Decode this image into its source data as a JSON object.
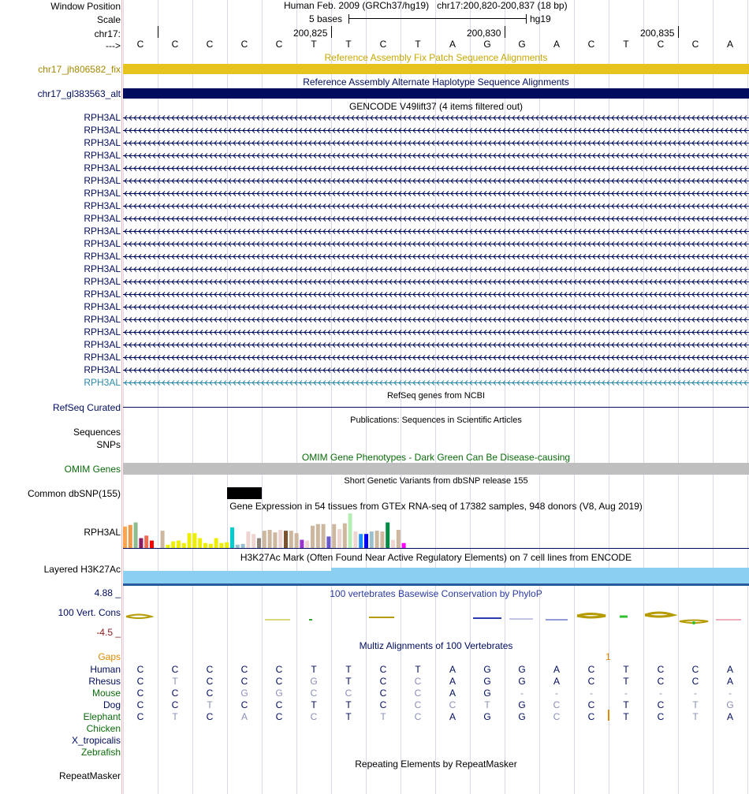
{
  "header": {
    "window_position_label": "Window Position",
    "scale_label": "Scale",
    "chrom_label": "chr17:",
    "strand_label": "--->",
    "assembly_text": "Human Feb. 2009 (GRCh37/hg19)",
    "position_text": "chr17:200,820-200,837 (18 bp)",
    "scale_text": "5 bases",
    "db_text": "hg19",
    "ticks": [
      "200,825",
      "200,830",
      "200,835"
    ],
    "bases": [
      "C",
      "C",
      "C",
      "C",
      "C",
      "T",
      "T",
      "C",
      "T",
      "A",
      "G",
      "G",
      "A",
      "C",
      "T",
      "C",
      "C",
      "A"
    ]
  },
  "tracks": {
    "fix_patch": {
      "title": "Reference Assembly Fix Patch Sequence Alignments",
      "label": "chr17_jh806582_fix",
      "color": "#e6c41d"
    },
    "alt_haplotype": {
      "title": "Reference Assembly Alternate Haplotype Sequence Alignments",
      "label": "chr17_gl383563_alt",
      "color": "#000c5e"
    },
    "gencode": {
      "title": "GENCODE V49lift37 (4 items filtered out)",
      "items": [
        "RPH3AL",
        "RPH3AL",
        "RPH3AL",
        "RPH3AL",
        "RPH3AL",
        "RPH3AL",
        "RPH3AL",
        "RPH3AL",
        "RPH3AL",
        "RPH3AL",
        "RPH3AL",
        "RPH3AL",
        "RPH3AL",
        "RPH3AL",
        "RPH3AL",
        "RPH3AL",
        "RPH3AL",
        "RPH3AL",
        "RPH3AL",
        "RPH3AL",
        "RPH3AL",
        "RPH3AL"
      ],
      "last_color": "#2d8aa8"
    },
    "refseq": {
      "title": "RefSeq genes from NCBI",
      "label": "RefSeq Curated"
    },
    "publications": {
      "title": "Publications: Sequences in Scientific Articles",
      "label_a": "Sequences",
      "label_b": "SNPs"
    },
    "omim": {
      "title": "OMIM Gene Phenotypes - Dark Green Can Be Disease-causing",
      "label": "OMIM Genes",
      "color": "#bfbfbf"
    },
    "dbsnp": {
      "title": "Short Genetic Variants from dbSNP release 155",
      "label": "Common dbSNP(155)"
    },
    "gtex": {
      "title": "Gene Expression in 54 tissues from GTEx RNA-seq of 17382 samples, 948 donors (V8, Aug 2019)",
      "label": "RPH3AL",
      "bars": [
        {
          "value": 26,
          "color": "#ffa54f"
        },
        {
          "value": 28,
          "color": "#ee9a49"
        },
        {
          "value": 31,
          "color": "#8fbc8f"
        },
        {
          "value": 12,
          "color": "#8b1c62"
        },
        {
          "value": 15,
          "color": "#ee6a50"
        },
        {
          "value": 9,
          "color": "#ff0000"
        },
        {
          "value": 2,
          "color": "#ffffff"
        },
        {
          "value": 21,
          "color": "#cdb79e"
        },
        {
          "value": 4,
          "color": "#eeee00"
        },
        {
          "value": 8,
          "color": "#eeee00"
        },
        {
          "value": 9,
          "color": "#eeee00"
        },
        {
          "value": 6,
          "color": "#eeee00"
        },
        {
          "value": 18,
          "color": "#eeee00"
        },
        {
          "value": 18,
          "color": "#eeee00"
        },
        {
          "value": 12,
          "color": "#eeee00"
        },
        {
          "value": 6,
          "color": "#eeee00"
        },
        {
          "value": 5,
          "color": "#eeee00"
        },
        {
          "value": 12,
          "color": "#eeee00"
        },
        {
          "value": 6,
          "color": "#eeee00"
        },
        {
          "value": 7,
          "color": "#eeee00"
        },
        {
          "value": 25,
          "color": "#00cdcd"
        },
        {
          "value": 4,
          "color": "#9ac0cd"
        },
        {
          "value": 5,
          "color": "#9ac0cd"
        },
        {
          "value": 20,
          "color": "#eed5d2"
        },
        {
          "value": 17,
          "color": "#eed5d2"
        },
        {
          "value": 12,
          "color": "#8b8378"
        },
        {
          "value": 21,
          "color": "#cdb79e"
        },
        {
          "value": 22,
          "color": "#cdb79e"
        },
        {
          "value": 19,
          "color": "#cdb79e"
        },
        {
          "value": 22,
          "color": "#eed5d2"
        },
        {
          "value": 21,
          "color": "#7a5230"
        },
        {
          "value": 21,
          "color": "#cdb79e"
        },
        {
          "value": 18,
          "color": "#cdb79e"
        },
        {
          "value": 10,
          "color": "#9a32cd"
        },
        {
          "value": 9,
          "color": "#eed5d2"
        },
        {
          "value": 27,
          "color": "#cdb79e"
        },
        {
          "value": 29,
          "color": "#cdb79e"
        },
        {
          "value": 29,
          "color": "#cdb79e"
        },
        {
          "value": 14,
          "color": "#6959cd"
        },
        {
          "value": 29,
          "color": "#cdb79e"
        },
        {
          "value": 23,
          "color": "#eed5d2"
        },
        {
          "value": 30,
          "color": "#cdb79e"
        },
        {
          "value": 42,
          "color": "#b4eeb4"
        },
        {
          "value": 20,
          "color": "#eed5d2"
        },
        {
          "value": 17,
          "color": "#1e90ff"
        },
        {
          "value": 17,
          "color": "#0000ff"
        },
        {
          "value": 20,
          "color": "#9ac0cd"
        },
        {
          "value": 21,
          "color": "#cdb79e"
        },
        {
          "value": 20,
          "color": "#cdb79e"
        },
        {
          "value": 31,
          "color": "#008b45"
        },
        {
          "value": 10,
          "color": "#eed5d2"
        },
        {
          "value": 22,
          "color": "#cdb79e"
        },
        {
          "value": 6,
          "color": "#ff00ff"
        },
        {
          "value": 1,
          "color": "#ffffff"
        }
      ]
    },
    "h3k27ac": {
      "title": "H3K27Ac Mark (Often Found Near Active Regulatory Elements) on 7 cell lines from ENCODE",
      "label": "Layered H3K27Ac",
      "color": "#8bcff2"
    },
    "phylop": {
      "title": "100 vertebrates Basewise Conservation by PhyloP",
      "label": "100 Vert. Cons",
      "ymax": "4.88 _",
      "ymin": "-4.5 _"
    },
    "multiz": {
      "title": "Multiz Alignments of 100 Vertebrates",
      "gaps_label": "Gaps",
      "gap_mark": "1",
      "species": [
        {
          "name": "Human",
          "color": "#000c5e"
        },
        {
          "name": "Rhesus",
          "color": "#000c5e"
        },
        {
          "name": "Mouse",
          "color": "#0a6b0a"
        },
        {
          "name": "Dog",
          "color": "#000c5e"
        },
        {
          "name": "Elephant",
          "color": "#0a6b0a"
        },
        {
          "name": "Chicken",
          "color": "#0a6b0a"
        },
        {
          "name": "X_tropicalis",
          "color": "#000c5e"
        },
        {
          "name": "Zebrafish",
          "color": "#0a6b0a"
        }
      ],
      "rows": [
        [
          "C",
          "C",
          "C",
          "C",
          "C",
          "T",
          "T",
          "C",
          "T",
          "A",
          "G",
          "G",
          "A",
          "C",
          "T",
          "C",
          "C",
          "A"
        ],
        [
          "C",
          "T",
          "C",
          "C",
          "C",
          "G",
          "T",
          "C",
          "C",
          "A",
          "G",
          "G",
          "A",
          "C",
          "T",
          "C",
          "C",
          "A"
        ],
        [
          "C",
          "C",
          "C",
          "G",
          "G",
          "C",
          "C",
          "C",
          "C",
          "A",
          "G",
          "-",
          "-",
          "-",
          "-",
          "-",
          "-",
          "-"
        ],
        [
          "C",
          "C",
          "T",
          "C",
          "C",
          "T",
          "T",
          "C",
          "C",
          "C",
          "T",
          "G",
          "C",
          "C",
          "T",
          "C",
          "T",
          "G"
        ],
        [
          "C",
          "T",
          "C",
          "A",
          "C",
          "C",
          "T",
          "T",
          "C",
          "A",
          "G",
          "G",
          "C",
          "C",
          "T",
          "C",
          "T",
          "A"
        ]
      ]
    },
    "repeatmasker": {
      "title": "Repeating Elements by RepeatMasker",
      "label": "RepeatMasker"
    }
  }
}
